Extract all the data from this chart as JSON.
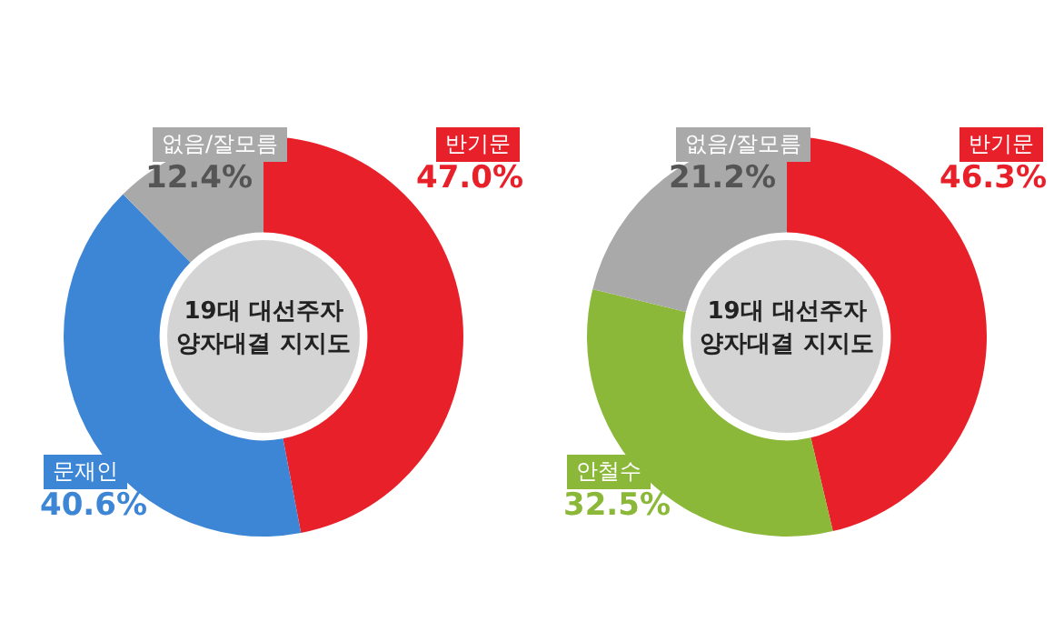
{
  "chart_data": [
    {
      "type": "donut",
      "title": "19대 대선주자 양자대결 지지도",
      "categories": [
        "반기문",
        "문재인",
        "없음/잘모름"
      ],
      "values": [
        47.0,
        40.6,
        12.4
      ],
      "value_labels": [
        "47.0%",
        "40.6%",
        "12.4%"
      ],
      "colors": [
        "#e8202a",
        "#3d86d6",
        "#a9a9a9"
      ],
      "legend": false
    },
    {
      "type": "donut",
      "title": "19대 대선주자 양자대결 지지도",
      "categories": [
        "반기문",
        "안철수",
        "없음/잘모름"
      ],
      "values": [
        46.3,
        32.5,
        21.2
      ],
      "value_labels": [
        "46.3%",
        "32.5%",
        "21.2%"
      ],
      "colors": [
        "#e8202a",
        "#8cb83a",
        "#a9a9a9"
      ],
      "legend": false
    }
  ]
}
